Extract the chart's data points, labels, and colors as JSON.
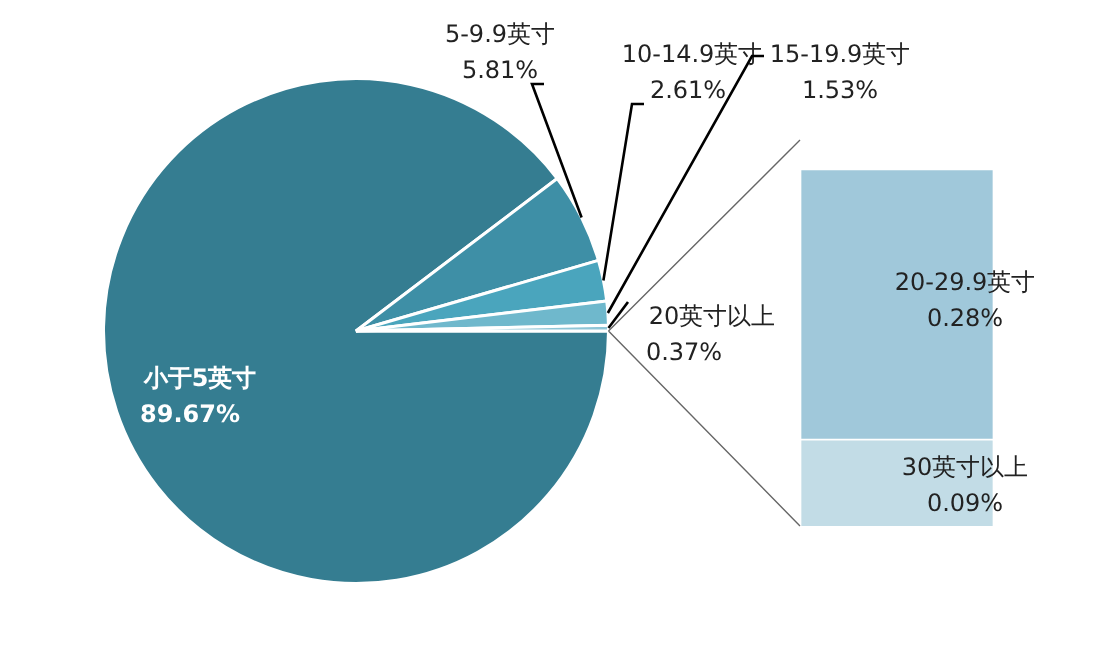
{
  "chart_data": [
    {
      "type": "pie",
      "categories": [
        "小于5英寸",
        "5-9.9英寸",
        "10-14.9英寸",
        "15-19.9英寸",
        "20英寸以上"
      ],
      "values": [
        89.67,
        5.81,
        2.61,
        1.53,
        0.37
      ],
      "value_labels": [
        "89.67%",
        "5.81%",
        "2.61%",
        "1.53%",
        "0.37%"
      ],
      "colors": [
        "#357d91",
        "#3e8fa6",
        "#4aa5bd",
        "#6fb8cc",
        "#8ec5d6"
      ],
      "legend": false
    },
    {
      "type": "bar",
      "stacked": true,
      "categories": [
        null
      ],
      "legend": false,
      "series": [
        {
          "name": "30英寸以上",
          "color": "#c2dce6",
          "values": [
            0.09
          ],
          "value_labels": [
            "0.09%"
          ]
        },
        {
          "name": "20-29.9英寸",
          "color": "#a0c8da",
          "values": [
            0.28
          ],
          "value_labels": [
            "0.28%"
          ]
        }
      ]
    }
  ]
}
